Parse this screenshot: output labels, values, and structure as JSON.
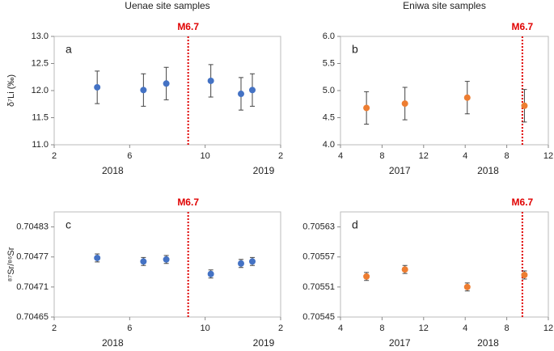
{
  "chart_data": [
    {
      "type": "scatter",
      "title": "Uenae site samples",
      "panel_label": "a",
      "y_label": "δ⁷Li (‰)",
      "x": [
        4.28,
        6.73,
        7.94,
        10.3,
        11.9,
        12.5
      ],
      "series": [
        {
          "color": "#4472c4",
          "values": [
            12.06,
            12.01,
            12.13,
            12.18,
            11.94,
            12.01
          ],
          "errors": [
            0.3,
            0.3,
            0.3,
            0.3,
            0.3,
            0.3
          ]
        }
      ],
      "xlim": [
        2,
        14
      ],
      "xticks": [
        2,
        6,
        10,
        {
          "value": 14,
          "label": "2"
        }
      ],
      "ylim": [
        11,
        13
      ],
      "yticks": [
        {
          "value": 11,
          "label": "11.0"
        },
        {
          "value": 11.5,
          "label": "11.5"
        },
        {
          "value": 12,
          "label": "12.0"
        },
        {
          "value": 12.5,
          "label": "12.5"
        },
        {
          "value": 13,
          "label": "13.0"
        }
      ],
      "year_labels": [
        {
          "label": "2018",
          "x": 5.1
        },
        {
          "label": "2019",
          "x": 13.1
        }
      ],
      "event": {
        "x": 9.1,
        "label": "M6.7",
        "color": "#e00000"
      }
    },
    {
      "type": "scatter",
      "title": "Eniwa site samples",
      "panel_label": "b",
      "x": [
        6.5,
        10.2,
        16.2,
        21.7
      ],
      "series": [
        {
          "color": "#ed7d31",
          "values": [
            4.68,
            4.76,
            4.87,
            4.72
          ],
          "errors": [
            0.3,
            0.3,
            0.3,
            0.3
          ]
        }
      ],
      "xlim": [
        4,
        24
      ],
      "xticks": [
        4,
        8,
        12,
        {
          "value": 16,
          "label": "4"
        },
        {
          "value": 20,
          "label": "8"
        },
        {
          "value": 24,
          "label": "12"
        }
      ],
      "ylim": [
        4,
        6
      ],
      "yticks": [
        {
          "value": 4,
          "label": "4.0"
        },
        {
          "value": 4.5,
          "label": "4.5"
        },
        {
          "value": 5,
          "label": "5.0"
        },
        {
          "value": 5.5,
          "label": "5.5"
        },
        {
          "value": 6,
          "label": "6.0"
        }
      ],
      "year_labels": [
        {
          "label": "2017",
          "x": 9.7
        },
        {
          "label": "2018",
          "x": 18.2
        }
      ],
      "event": {
        "x": 21.5,
        "label": "M6.7",
        "color": "#e00000"
      }
    },
    {
      "type": "scatter",
      "panel_label": "c",
      "y_label": "⁸⁷Sr/⁸⁶Sr",
      "x": [
        4.28,
        6.73,
        7.94,
        10.3,
        11.9,
        12.5
      ],
      "series": [
        {
          "color": "#4472c4",
          "values": [
            0.704768,
            0.704761,
            0.704765,
            0.704736,
            0.704757,
            0.704761
          ],
          "errors": [
            8e-06,
            8e-06,
            8e-06,
            8e-06,
            8e-06,
            8e-06
          ]
        }
      ],
      "xlim": [
        2,
        14
      ],
      "xticks": [
        2,
        6,
        10,
        {
          "value": 14,
          "label": "2"
        }
      ],
      "ylim": [
        0.70465,
        0.70486
      ],
      "yticks": [
        0.70465,
        0.70471,
        0.70477,
        0.70483
      ],
      "year_labels": [
        {
          "label": "2018",
          "x": 5.1
        },
        {
          "label": "2019",
          "x": 13.1
        }
      ],
      "event": {
        "x": 9.1,
        "label": "M6.7",
        "color": "#e00000"
      }
    },
    {
      "type": "scatter",
      "panel_label": "d",
      "x": [
        6.5,
        10.2,
        16.2,
        21.7
      ],
      "series": [
        {
          "color": "#ed7d31",
          "values": [
            0.705531,
            0.705545,
            0.70551,
            0.705534
          ],
          "errors": [
            8e-06,
            8e-06,
            8e-06,
            8e-06
          ]
        }
      ],
      "xlim": [
        4,
        24
      ],
      "xticks": [
        4,
        8,
        12,
        {
          "value": 16,
          "label": "4"
        },
        {
          "value": 20,
          "label": "8"
        },
        {
          "value": 24,
          "label": "12"
        }
      ],
      "ylim": [
        0.70545,
        0.70566
      ],
      "yticks": [
        0.70545,
        0.70551,
        0.70557,
        0.70563
      ],
      "year_labels": [
        {
          "label": "2017",
          "x": 9.7
        },
        {
          "label": "2018",
          "x": 18.2
        }
      ],
      "event": {
        "x": 21.5,
        "label": "M6.7",
        "color": "#e00000"
      }
    }
  ]
}
